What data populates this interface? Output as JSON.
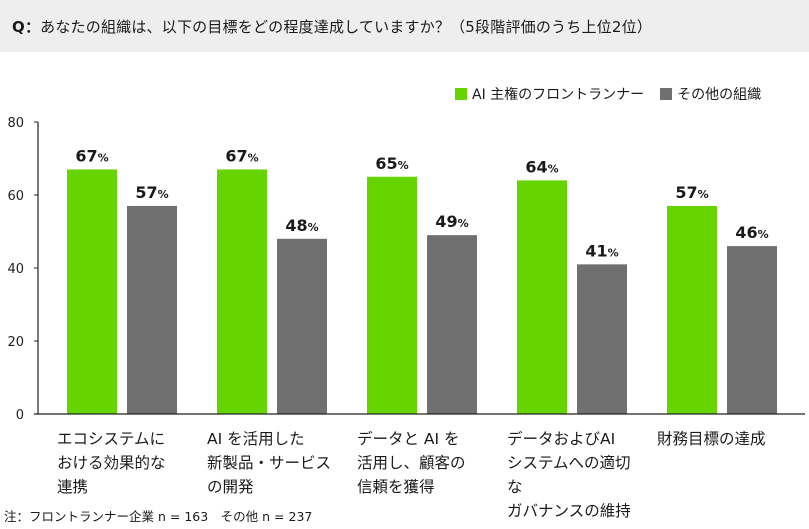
{
  "question": {
    "prefix": "Q：",
    "text": "あなたの組織は、以下の目標をどの程度達成していますか？（5段階評価のうち上位2位）"
  },
  "colors": {
    "series_green": "#66d400",
    "series_gray": "#707070",
    "axis": "#222222",
    "header_bg": "#eeeeee"
  },
  "chart_data": {
    "type": "bar",
    "title": "",
    "xlabel": "",
    "ylabel": "",
    "ylim": [
      0,
      80
    ],
    "yticks": [
      0,
      20,
      40,
      60,
      80
    ],
    "grid": false,
    "legend_position": "top-right",
    "categories": [
      [
        "エコシステムに",
        "おける効果的な",
        "連携"
      ],
      [
        "AI を活用した",
        "新製品・サービス",
        "の開発"
      ],
      [
        "データと AI を",
        "活用し、顧客の",
        "信頼を獲得"
      ],
      [
        "データおよびAI",
        "システムへの適切な",
        "ガバナンスの維持"
      ],
      [
        "財務目標の達成"
      ]
    ],
    "series": [
      {
        "name": "AI 主権のフロントランナー",
        "values": [
          67,
          67,
          65,
          64,
          57
        ]
      },
      {
        "name": "その他の組織",
        "values": [
          57,
          48,
          49,
          41,
          46
        ]
      }
    ],
    "value_suffix": "%"
  },
  "footnote": "注：フロントランナー企業 n = 163　その他 n = 237"
}
